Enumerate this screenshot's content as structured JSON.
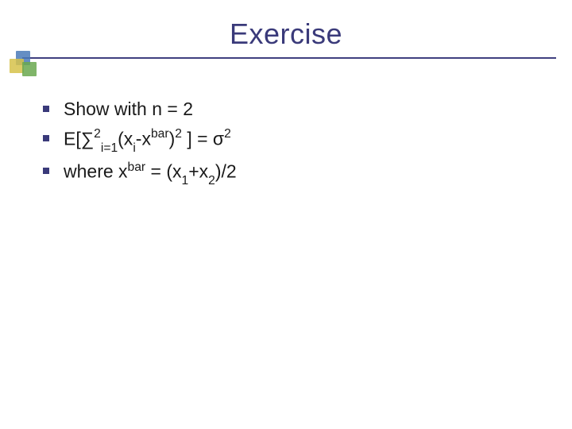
{
  "title": "Exercise",
  "title_color": "#3a3a7a",
  "title_fontsize": 36,
  "underline_color": "#404080",
  "decoration_colors": [
    "#4a7ab8",
    "#d6c24a",
    "#6aa84f"
  ],
  "body_fontsize": 23,
  "body_color": "#1a1a1a",
  "bullet_color": "#3a3a7a",
  "bullets": [
    {
      "parts": [
        {
          "t": "Show with n = 2"
        }
      ]
    },
    {
      "parts": [
        {
          "t": "E["
        },
        {
          "t": "∑"
        },
        {
          "t": "2",
          "sup": true
        },
        {
          "t": "i=1",
          "sub": true
        },
        {
          "t": "(x"
        },
        {
          "t": "i",
          "sub": true
        },
        {
          "t": "-x"
        },
        {
          "t": "bar",
          "sup": true
        },
        {
          "t": ")"
        },
        {
          "t": "2",
          "sup": true
        },
        {
          "t": " ]  =  σ"
        },
        {
          "t": "2",
          "sup": true
        }
      ]
    },
    {
      "parts": [
        {
          "t": "where x"
        },
        {
          "t": "bar",
          "sup": true
        },
        {
          "t": " = (x"
        },
        {
          "t": "1",
          "sub": true
        },
        {
          "t": "+x"
        },
        {
          "t": "2",
          "sub": true
        },
        {
          "t": ")/2"
        }
      ]
    }
  ]
}
